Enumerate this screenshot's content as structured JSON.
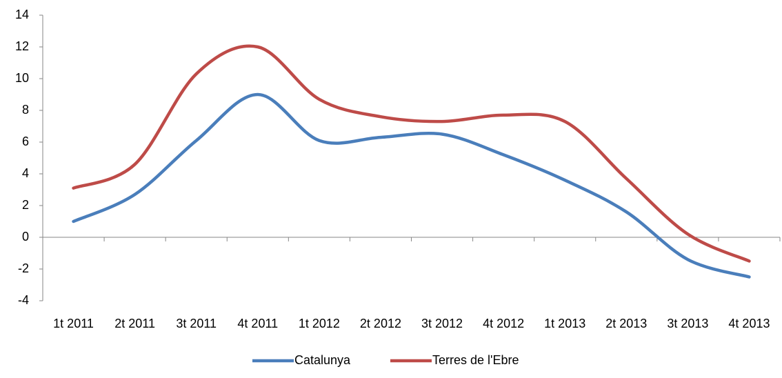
{
  "chart_data": {
    "type": "line",
    "categories": [
      "1t 2011",
      "2t 2011",
      "3t 2011",
      "4t 2011",
      "1t 2012",
      "2t 2012",
      "3t 2012",
      "4t 2012",
      "1t 2013",
      "2t 2013",
      "3t 2013",
      "4t 2013"
    ],
    "series": [
      {
        "name": "Catalunya",
        "color": "#4a7ebb",
        "values": [
          1.0,
          2.7,
          6.1,
          9.0,
          6.1,
          6.3,
          6.5,
          5.2,
          3.6,
          1.6,
          -1.4,
          -2.5
        ]
      },
      {
        "name": "Terres de l'Ebre",
        "color": "#be4b48",
        "values": [
          3.1,
          4.6,
          10.3,
          12.0,
          8.7,
          7.6,
          7.3,
          7.7,
          7.3,
          3.7,
          0.2,
          -1.5
        ]
      }
    ],
    "ylim": [
      -4,
      14
    ],
    "yticks": [
      -4,
      -2,
      0,
      2,
      4,
      6,
      8,
      10,
      12,
      14
    ],
    "grid": false,
    "smooth": true,
    "legend": "bottom"
  }
}
